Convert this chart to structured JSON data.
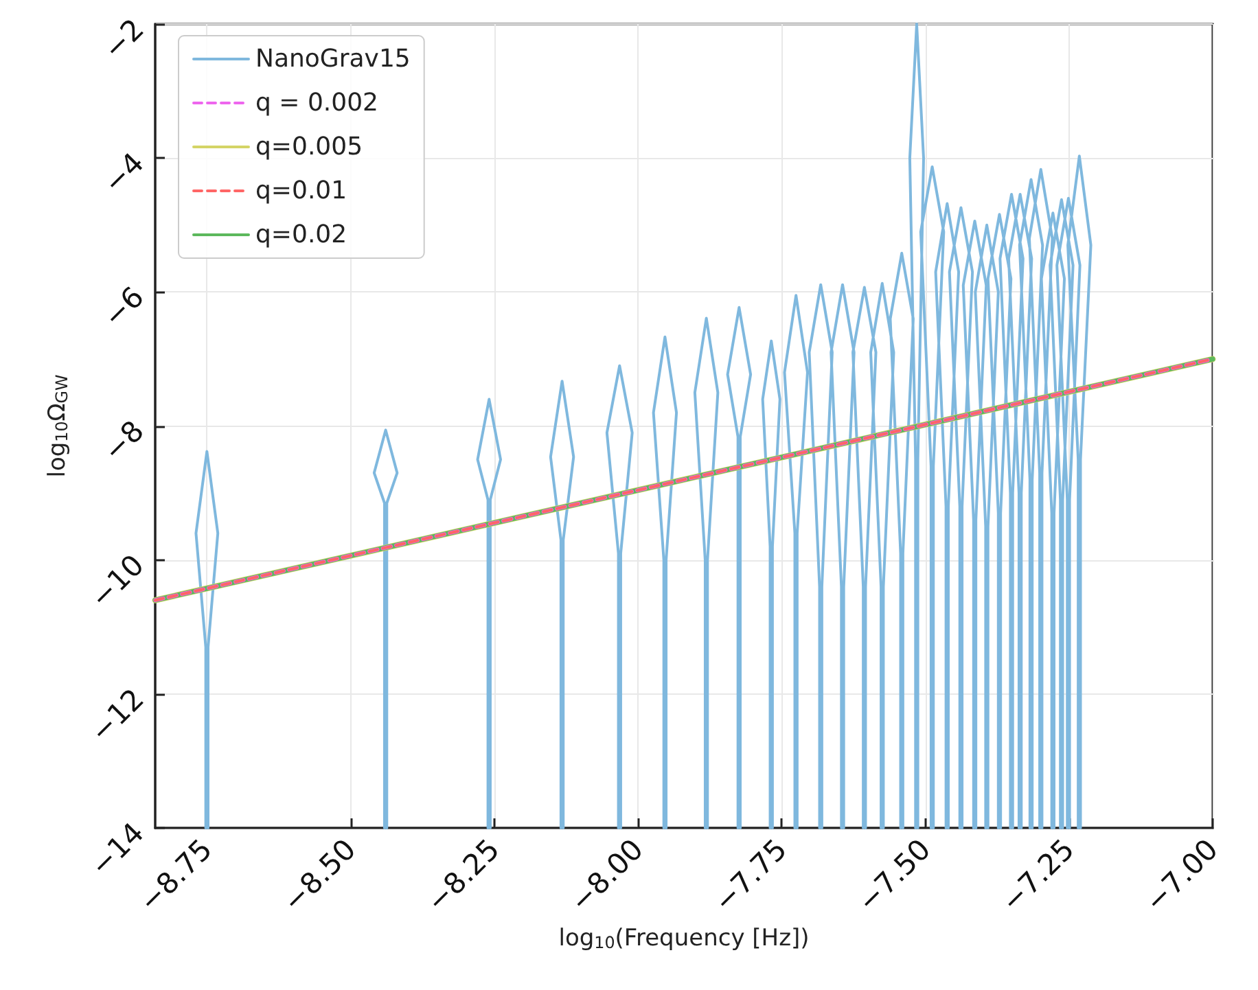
{
  "chart_data": {
    "type": "line",
    "xlabel": "log$_{10}$(Frequency [Hz])",
    "ylabel": "log$_{10}$Ω$_{GW}$",
    "xlim": [
      -8.84,
      -7.0
    ],
    "ylim": [
      -14,
      -2
    ],
    "xticks": [
      {
        "value": -8.75,
        "label": "−8.75"
      },
      {
        "value": -8.5,
        "label": "−8.50"
      },
      {
        "value": -8.25,
        "label": "−8.25"
      },
      {
        "value": -8.0,
        "label": "−8.00"
      },
      {
        "value": -7.75,
        "label": "−7.75"
      },
      {
        "value": -7.5,
        "label": "−7.50"
      },
      {
        "value": -7.25,
        "label": "−7.25"
      },
      {
        "value": -7.0,
        "label": "−7.00"
      }
    ],
    "yticks": [
      {
        "value": -14,
        "label": "−14"
      },
      {
        "value": -12,
        "label": "−12"
      },
      {
        "value": -10,
        "label": "−10"
      },
      {
        "value": -8,
        "label": "−8"
      },
      {
        "value": -6,
        "label": "−6"
      },
      {
        "value": -4,
        "label": "−4"
      },
      {
        "value": -2,
        "label": "−2"
      }
    ],
    "grid": true,
    "legend": "top left",
    "marker": "none",
    "series": [
      {
        "name": "NanoGrav15",
        "color": "#7fb8de",
        "line_style": "solid",
        "x": [
          -8.752,
          -8.752,
          -8.769,
          -8.75,
          -8.731,
          -8.748,
          -8.748,
          null,
          -8.441,
          -8.441,
          -8.459,
          -8.439,
          -8.419,
          -8.437,
          -8.437,
          null,
          -8.261,
          -8.261,
          -8.279,
          -8.259,
          -8.239,
          -8.257,
          -8.257,
          null,
          -8.134,
          -8.134,
          -8.152,
          -8.132,
          -8.112,
          -8.13,
          -8.13,
          null,
          -8.034,
          -8.034,
          -8.054,
          -8.032,
          -8.01,
          -8.03,
          -8.03,
          null,
          -7.955,
          -7.955,
          -7.973,
          -7.953,
          -7.933,
          -7.951,
          -7.951,
          null,
          -7.883,
          -7.883,
          -7.901,
          -7.881,
          -7.861,
          -7.879,
          -7.879,
          null,
          -7.826,
          -7.826,
          -7.844,
          -7.824,
          -7.804,
          -7.822,
          -7.822,
          null,
          -7.77,
          -7.77,
          -7.783,
          -7.768,
          -7.753,
          -7.766,
          -7.766,
          null,
          -7.727,
          -7.727,
          -7.745,
          -7.725,
          -7.705,
          -7.723,
          -7.723,
          null,
          -7.684,
          -7.684,
          -7.702,
          -7.682,
          -7.662,
          -7.68,
          -7.68,
          null,
          -7.646,
          -7.646,
          -7.664,
          -7.644,
          -7.624,
          -7.642,
          -7.642,
          null,
          -7.608,
          -7.608,
          -7.626,
          -7.606,
          -7.586,
          -7.604,
          -7.604,
          null,
          -7.577,
          -7.577,
          -7.595,
          -7.575,
          -7.555,
          -7.573,
          -7.573,
          null,
          -7.543,
          -7.543,
          -7.561,
          -7.541,
          -7.521,
          -7.539,
          -7.539,
          null,
          -7.517,
          -7.517,
          -7.527,
          -7.515,
          -7.503,
          -7.513,
          -7.513,
          null,
          -7.49,
          -7.49,
          -7.508,
          -7.488,
          -7.468,
          -7.486,
          -7.486,
          null,
          -7.464,
          -7.464,
          -7.482,
          -7.462,
          -7.442,
          -7.46,
          -7.46,
          null,
          -7.44,
          -7.44,
          -7.458,
          -7.438,
          -7.418,
          -7.436,
          -7.436,
          null,
          -7.416,
          -7.416,
          -7.434,
          -7.414,
          -7.394,
          -7.412,
          -7.412,
          null,
          -7.395,
          -7.395,
          -7.413,
          -7.393,
          -7.373,
          -7.391,
          -7.391,
          null,
          -7.373,
          -7.373,
          -7.391,
          -7.371,
          -7.351,
          -7.369,
          -7.369,
          null,
          -7.352,
          -7.352,
          -7.37,
          -7.35,
          -7.33,
          -7.348,
          -7.348,
          null,
          -7.337,
          -7.337,
          -7.355,
          -7.335,
          -7.315,
          -7.333,
          -7.333,
          null,
          -7.318,
          -7.318,
          -7.336,
          -7.316,
          -7.296,
          -7.314,
          -7.314,
          null,
          -7.301,
          -7.301,
          -7.319,
          -7.299,
          -7.279,
          -7.297,
          -7.297,
          null,
          -7.28,
          -7.28,
          -7.298,
          -7.278,
          -7.258,
          -7.276,
          -7.276,
          null,
          -7.265,
          -7.265,
          -7.283,
          -7.263,
          -7.243,
          -7.261,
          -7.261,
          null,
          -7.253,
          -7.253,
          -7.271,
          -7.251,
          -7.231,
          -7.249,
          -7.249,
          null,
          -7.234,
          -7.234,
          -7.252,
          -7.232,
          -7.212,
          -7.23,
          -7.23,
          null
        ],
        "values": [
          -14,
          -11.3,
          -9.6,
          -8.38,
          -9.6,
          -11.3,
          -14,
          null,
          -14,
          -9.15,
          -8.7,
          -8.06,
          -8.7,
          -9.15,
          -14,
          null,
          -14,
          -9.1,
          -8.5,
          -7.6,
          -8.5,
          -9.1,
          -14,
          null,
          -14,
          -9.7,
          -8.46,
          -7.33,
          -8.46,
          -9.7,
          -14,
          null,
          -14,
          -9.9,
          -8.1,
          -7.1,
          -8.1,
          -9.9,
          -14,
          null,
          -14,
          -10.0,
          -7.8,
          -6.67,
          -7.8,
          -10.0,
          -14,
          null,
          -14,
          -10.0,
          -7.5,
          -6.39,
          -7.5,
          -10.0,
          -14,
          null,
          -14,
          -8.16,
          -7.23,
          -6.23,
          -7.23,
          -8.16,
          -14,
          null,
          -14,
          -9.8,
          -7.6,
          -6.73,
          -7.6,
          -9.8,
          -14,
          null,
          -14,
          -9.6,
          -7.2,
          -6.05,
          -7.2,
          -9.6,
          -14,
          null,
          -14,
          -10.4,
          -6.9,
          -5.89,
          -6.9,
          -10.4,
          -14,
          null,
          -14,
          -10.4,
          -6.9,
          -5.89,
          -6.9,
          -10.4,
          -14,
          null,
          -14,
          -10.4,
          -6.9,
          -5.93,
          -6.9,
          -10.4,
          -14,
          null,
          -14,
          -10.4,
          -6.9,
          -5.87,
          -6.9,
          -10.4,
          -14,
          null,
          -14,
          -9.9,
          -6.4,
          -5.42,
          -6.4,
          -9.9,
          -14,
          null,
          -14,
          -8.5,
          -4.0,
          -2.0,
          -4.0,
          -8.5,
          -14,
          null,
          -14,
          -8.6,
          -5.1,
          -4.13,
          -5.1,
          -8.6,
          -14,
          null,
          -14,
          -9.2,
          -5.7,
          -4.68,
          -5.7,
          -9.2,
          -14,
          null,
          -14,
          -9.2,
          -5.7,
          -4.74,
          -5.7,
          -9.2,
          -14,
          null,
          -14,
          -9.4,
          -5.9,
          -4.94,
          -5.9,
          -9.4,
          -14,
          null,
          -14,
          -9.5,
          -6.0,
          -5.0,
          -6.0,
          -9.5,
          -14,
          null,
          -14,
          -9.3,
          -5.8,
          -4.84,
          -5.8,
          -9.3,
          -14,
          null,
          -14,
          -9.0,
          -5.5,
          -4.54,
          -5.5,
          -9.0,
          -14,
          null,
          -14,
          -9.0,
          -5.5,
          -4.54,
          -5.5,
          -9.0,
          -14,
          null,
          -14,
          -8.8,
          -5.3,
          -4.32,
          -5.3,
          -8.8,
          -14,
          null,
          -14,
          -8.7,
          -5.2,
          -4.17,
          -5.2,
          -8.7,
          -14,
          null,
          -14,
          -9.3,
          -5.8,
          -4.82,
          -5.8,
          -9.3,
          -14,
          null,
          -14,
          -9.1,
          -5.6,
          -4.62,
          -5.6,
          -9.1,
          -14,
          null,
          -14,
          -9.1,
          -5.6,
          -4.6,
          -5.6,
          -9.1,
          -14,
          null,
          -14,
          -8.5,
          -5.3,
          -3.97,
          -5.3,
          -8.5,
          -14,
          null
        ]
      },
      {
        "name": "q = 0.002",
        "color": "#ee66ee",
        "line_style": "dashed",
        "x": [
          -8.84,
          -7.0
        ],
        "values": [
          -10.6,
          -7.0
        ]
      },
      {
        "name": "q=0.005",
        "color": "#d4d466",
        "line_style": "solid",
        "x": [
          -8.84,
          -7.0
        ],
        "values": [
          -10.6,
          -7.0
        ]
      },
      {
        "name": "q=0.01",
        "color": "#ff6666",
        "line_style": "dashed",
        "x": [
          -8.84,
          -7.0
        ],
        "values": [
          -10.6,
          -7.0
        ]
      },
      {
        "name": "q=0.02",
        "color": "#5cb85c",
        "line_style": "solid",
        "x": [
          -8.84,
          -7.0
        ],
        "values": [
          -10.6,
          -7.0
        ]
      }
    ]
  }
}
